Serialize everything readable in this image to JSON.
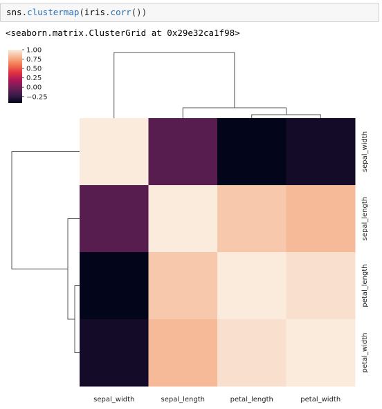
{
  "code_cell": {
    "tokens": [
      {
        "text": "sns",
        "kind": "var"
      },
      {
        "text": ".",
        "kind": "p"
      },
      {
        "text": "clustermap",
        "kind": "fn"
      },
      {
        "text": "(",
        "kind": "p"
      },
      {
        "text": "iris",
        "kind": "var"
      },
      {
        "text": ".",
        "kind": "p"
      },
      {
        "text": "corr",
        "kind": "fn"
      },
      {
        "text": "())",
        "kind": "p"
      }
    ]
  },
  "output": {
    "text": "<seaborn.matrix.ClusterGrid at 0x29e32ca1f98>"
  },
  "colors": {
    "dendrogram": "#555555",
    "colormap": [
      "#03051a",
      "#3a1a47",
      "#701f57",
      "#ad1759",
      "#e13342",
      "#f37651",
      "#f6b48f",
      "#faebdd"
    ]
  },
  "chart_data": {
    "type": "heatmap",
    "title": "",
    "rows": [
      "sepal_width",
      "sepal_length",
      "petal_length",
      "petal_width"
    ],
    "columns": [
      "sepal_width",
      "sepal_length",
      "petal_length",
      "petal_width"
    ],
    "values": [
      [
        1.0,
        -0.11,
        -0.42,
        -0.36
      ],
      [
        -0.11,
        1.0,
        0.87,
        0.82
      ],
      [
        -0.42,
        0.87,
        1.0,
        0.96
      ],
      [
        -0.36,
        0.82,
        0.96,
        1.0
      ]
    ],
    "colorbar": {
      "min": -0.42,
      "max": 1.0,
      "ticks": [
        1.0,
        0.75,
        0.5,
        0.25,
        0.0,
        -0.25
      ],
      "tick_labels": [
        "1.00",
        "0.75",
        "0.50",
        "0.25",
        "0.00",
        "−0.25"
      ]
    },
    "row_dendrogram": true,
    "col_dendrogram": true
  }
}
